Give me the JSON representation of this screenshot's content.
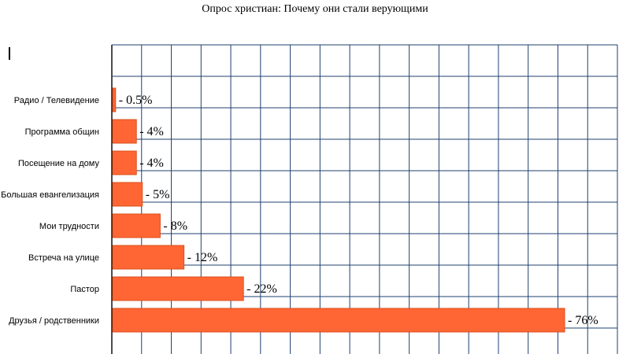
{
  "title": "Опрос христиан: Почему они стали верующими",
  "chart_data": {
    "type": "bar",
    "orientation": "horizontal",
    "title": "Опрос христиан: Почему они стали верующими",
    "categories": [
      "Радио / Телевидение",
      "Программа общин",
      "Посещение на дому",
      "Большая евангелизация",
      "Мои трудности",
      "Встреча на улице",
      "Пастор",
      "Друзья / родственники"
    ],
    "values": [
      0.5,
      4,
      4,
      5,
      8,
      12,
      22,
      76
    ],
    "data_labels": [
      "- 0.5%",
      "- 4%",
      "- 4%",
      "- 5%",
      "- 8%",
      "- 12%",
      "- 22%",
      "- 76%"
    ],
    "xlim": [
      0,
      85
    ],
    "grid": true,
    "bar_color": "#ff6633",
    "grid_color": "#1f3f6f"
  }
}
